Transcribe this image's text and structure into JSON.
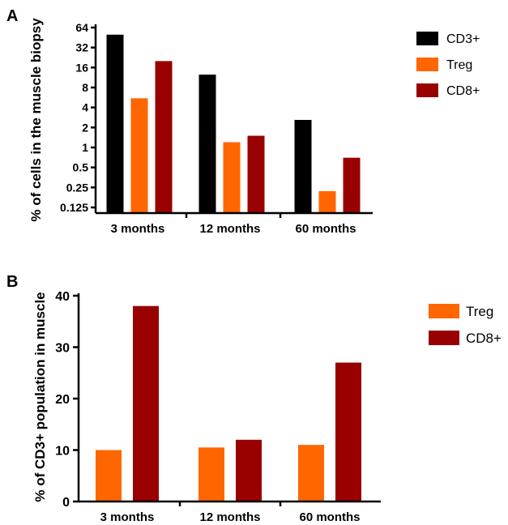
{
  "chart_data": [
    {
      "panel": "A",
      "type": "bar",
      "yscale": "log2",
      "ylabel": "% of cells in the muscle biopsy",
      "ylim": [
        0.1,
        70
      ],
      "yticks": [
        "64",
        "32",
        "16",
        "8",
        "4",
        "2",
        "1",
        "0.5",
        "0.25",
        "0.125"
      ],
      "categories": [
        "3 months",
        "12 months",
        "60 months"
      ],
      "series": [
        {
          "name": "CD3+",
          "color": "#000000",
          "values": [
            50,
            12.5,
            2.6
          ]
        },
        {
          "name": "Treg",
          "color": "#FF6600",
          "values": [
            5.5,
            1.2,
            0.22
          ]
        },
        {
          "name": "CD8+",
          "color": "#990000",
          "values": [
            20,
            1.5,
            0.7
          ]
        }
      ],
      "legend": "top-right"
    },
    {
      "panel": "B",
      "type": "bar",
      "yscale": "linear",
      "ylabel": "% of CD3+ population in muscle",
      "ylim": [
        0,
        40
      ],
      "yticks": [
        "0",
        "10",
        "20",
        "30",
        "40"
      ],
      "categories": [
        "3 months",
        "12 months",
        "60 months"
      ],
      "series": [
        {
          "name": "Treg",
          "color": "#FF6600",
          "values": [
            10,
            10.5,
            11
          ]
        },
        {
          "name": "CD8+",
          "color": "#990000",
          "values": [
            38,
            12,
            27
          ]
        }
      ],
      "legend": "top-right"
    }
  ]
}
